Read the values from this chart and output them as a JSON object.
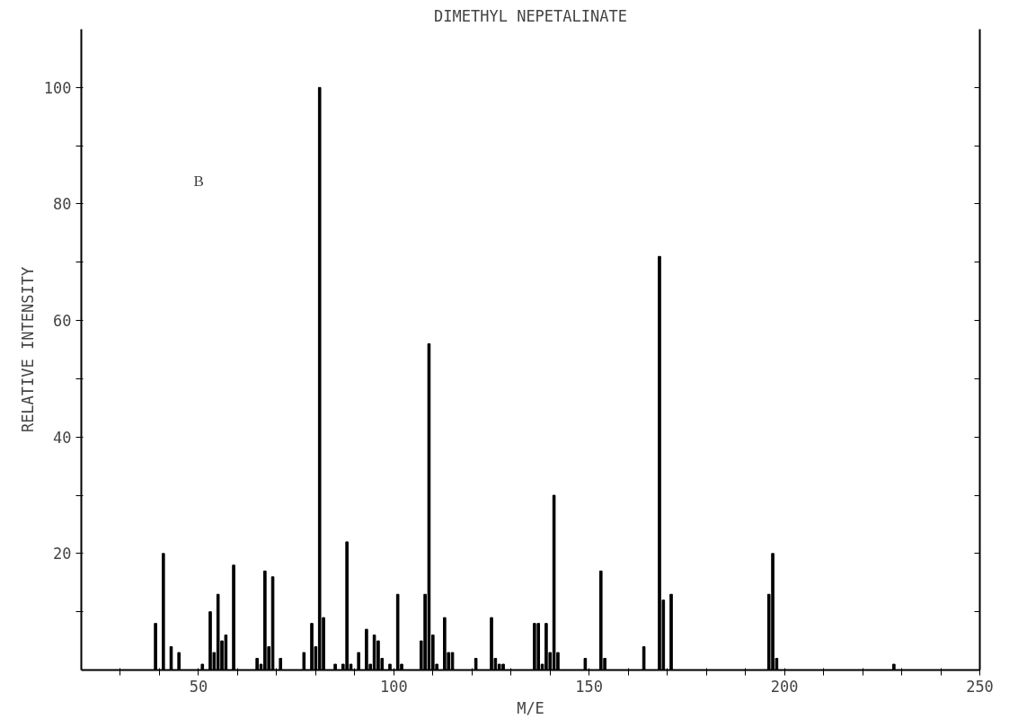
{
  "chart_data": {
    "type": "bar",
    "title": "DIMETHYL NEPETALINATE",
    "xlabel": "M/E",
    "ylabel": "RELATIVE INTENSITY",
    "annotations": [
      "B"
    ],
    "x": [
      39,
      41,
      43,
      45,
      51,
      53,
      54,
      55,
      56,
      57,
      59,
      65,
      66,
      67,
      68,
      69,
      71,
      77,
      79,
      80,
      81,
      82,
      85,
      87,
      88,
      89,
      91,
      93,
      94,
      95,
      96,
      97,
      99,
      101,
      102,
      107,
      108,
      109,
      110,
      111,
      113,
      114,
      115,
      121,
      125,
      126,
      127,
      128,
      136,
      137,
      138,
      139,
      140,
      141,
      142,
      149,
      153,
      154,
      164,
      168,
      169,
      171,
      196,
      197,
      198,
      228
    ],
    "series": [
      {
        "color": "#000000",
        "values": [
          8,
          20,
          4,
          3,
          1,
          10,
          3,
          13,
          5,
          6,
          18,
          2,
          1,
          17,
          4,
          16,
          2,
          3,
          8,
          4,
          100,
          9,
          1,
          1,
          22,
          1,
          3,
          7,
          1,
          6,
          5,
          2,
          1,
          13,
          1,
          5,
          13,
          56,
          6,
          1,
          9,
          3,
          3,
          2,
          9,
          2,
          1,
          1,
          8,
          8,
          1,
          8,
          3,
          30,
          3,
          2,
          17,
          2,
          4,
          71,
          12,
          13,
          13,
          20,
          2,
          1
        ]
      }
    ],
    "xlim": [
      20,
      250
    ],
    "ylim": [
      0,
      110
    ],
    "xticks": [
      {
        "value": 30,
        "label": null
      },
      {
        "value": 40,
        "label": null
      },
      50,
      {
        "value": 60,
        "label": null
      },
      {
        "value": 70,
        "label": null
      },
      {
        "value": 80,
        "label": null
      },
      {
        "value": 90,
        "label": null
      },
      100,
      {
        "value": 110,
        "label": null
      },
      {
        "value": 120,
        "label": null
      },
      {
        "value": 130,
        "label": null
      },
      {
        "value": 140,
        "label": null
      },
      150,
      {
        "value": 160,
        "label": null
      },
      {
        "value": 170,
        "label": null
      },
      {
        "value": 180,
        "label": null
      },
      {
        "value": 190,
        "label": null
      },
      200,
      {
        "value": 210,
        "label": null
      },
      {
        "value": 220,
        "label": null
      },
      {
        "value": 230,
        "label": null
      },
      {
        "value": 240,
        "label": null
      },
      250
    ],
    "yticks": [
      {
        "value": 10,
        "label": null
      },
      20,
      {
        "value": 30,
        "label": null
      },
      40,
      {
        "value": 50,
        "label": null
      },
      60,
      {
        "value": 70,
        "label": null
      },
      80,
      {
        "value": 90,
        "label": null
      },
      100
    ],
    "grid": false
  }
}
